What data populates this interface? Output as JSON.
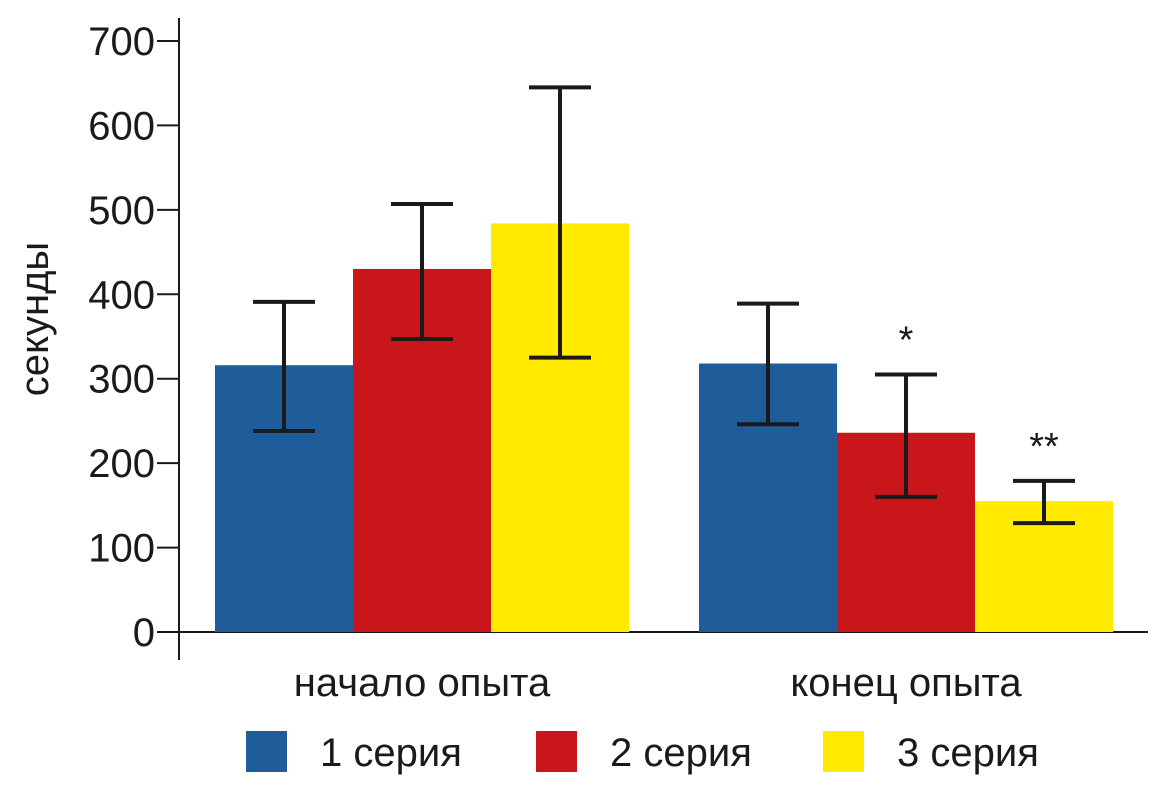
{
  "chart_data": {
    "type": "bar",
    "ylabel": "секунды",
    "xlabel": "",
    "ylim": [
      0,
      700
    ],
    "yticks": [
      0,
      100,
      200,
      300,
      400,
      500,
      600,
      700
    ],
    "categories": [
      "начало опыта",
      "конец опыта"
    ],
    "series": [
      {
        "name": "1 серия",
        "color": "#1f5c9a",
        "values": [
          316,
          318
        ],
        "err_low": [
          238,
          246
        ],
        "err_high": [
          391,
          389
        ],
        "annotations": [
          "",
          ""
        ]
      },
      {
        "name": "2 серия",
        "color": "#c8161b",
        "values": [
          430,
          236
        ],
        "err_low": [
          347,
          160
        ],
        "err_high": [
          507,
          305
        ],
        "annotations": [
          "",
          "*"
        ]
      },
      {
        "name": "3 серия",
        "color": "#ffea00",
        "values": [
          484,
          155
        ],
        "err_low": [
          325,
          129
        ],
        "err_high": [
          645,
          179
        ],
        "annotations": [
          "",
          "**"
        ]
      }
    ],
    "legend_position": "bottom",
    "grid": false
  }
}
